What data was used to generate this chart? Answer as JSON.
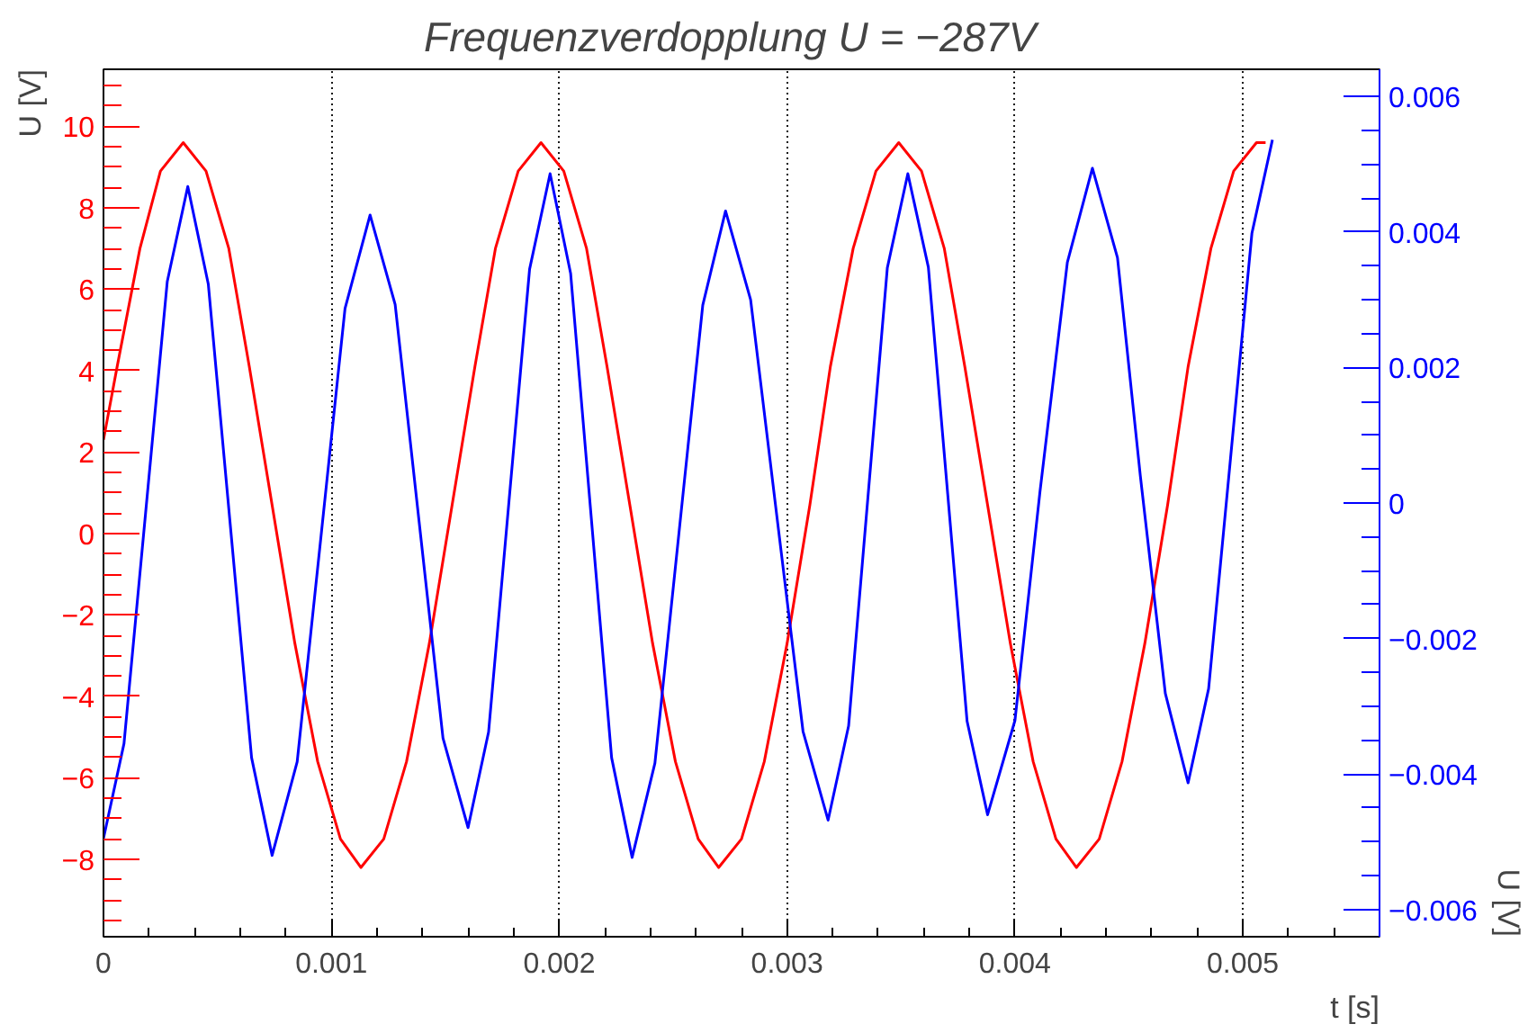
{
  "chart_data": {
    "type": "line",
    "title": "Frequenzverdopplung   U = −287V",
    "xlabel": "t [s]",
    "ylabel": "U [V]",
    "y2label": "U [V]",
    "xlim": [
      0,
      0.0056
    ],
    "xticks": [
      0,
      0.001,
      0.002,
      0.003,
      0.004,
      0.005
    ],
    "ylim": [
      -9.9,
      11.4
    ],
    "yticks": [
      {
        "value": -8,
        "label": "−8"
      },
      {
        "value": -6,
        "label": "−6"
      },
      {
        "value": -4,
        "label": "−4"
      },
      {
        "value": -2,
        "label": "−2"
      },
      0,
      2,
      4,
      6,
      8,
      10
    ],
    "y2lim": [
      -0.0064,
      0.0064
    ],
    "y2ticks": [
      {
        "value": -0.006,
        "label": "−0.006"
      },
      {
        "value": -0.004,
        "label": "−0.004"
      },
      {
        "value": -0.002,
        "label": "−0.002"
      },
      0,
      0.002,
      0.004,
      0.006
    ],
    "grid": "x",
    "series": [
      {
        "color": "#ff0000",
        "x": [
          0,
          6e-05,
          0.00016,
          0.00025,
          0.00035,
          0.00045,
          0.00055,
          0.00064,
          0.00074,
          0.00084,
          0.00094,
          0.00104,
          0.00113,
          0.00123,
          0.00133,
          0.00143,
          0.00153,
          0.00163,
          0.00172,
          0.00182,
          0.00192,
          0.00202,
          0.00212,
          0.00221,
          0.00231,
          0.00241,
          0.00251,
          0.00261,
          0.0027,
          0.0028,
          0.0029,
          0.003,
          0.0031,
          0.00319,
          0.00329,
          0.00339,
          0.00349,
          0.00359,
          0.00369,
          0.00378,
          0.00388,
          0.00398,
          0.00408,
          0.00418,
          0.00427,
          0.00437,
          0.00447,
          0.00457,
          0.00467,
          0.00476,
          0.00486,
          0.00496,
          0.00506,
          0.0051
        ],
        "values": [
          2.3,
          4.1,
          7.0,
          8.9,
          9.6,
          8.9,
          7.0,
          4.1,
          0.7,
          -2.7,
          -5.6,
          -7.5,
          -8.2,
          -7.5,
          -5.6,
          -2.7,
          0.7,
          4.1,
          7.0,
          8.9,
          9.6,
          8.9,
          7.0,
          4.1,
          0.7,
          -2.7,
          -5.6,
          -7.5,
          -8.2,
          -7.5,
          -5.6,
          -2.7,
          0.7,
          4.1,
          7.0,
          8.9,
          9.6,
          8.9,
          7.0,
          4.1,
          0.7,
          -2.7,
          -5.6,
          -7.5,
          -8.2,
          -7.5,
          -5.6,
          -2.7,
          0.7,
          4.1,
          7.0,
          8.9,
          9.6,
          9.6
        ]
      },
      {
        "color": "#0000ff",
        "axis": "y2",
        "x": [
          0,
          9e-05,
          0.000185,
          0.00028,
          0.00037,
          0.00046,
          0.000555,
          0.00065,
          0.00074,
          0.00085,
          0.000955,
          0.00106,
          0.00117,
          0.00128,
          0.001385,
          0.00149,
          0.0016,
          0.00169,
          0.00178,
          0.00187,
          0.00196,
          0.00205,
          0.00214,
          0.00223,
          0.00232,
          0.00242,
          0.002525,
          0.00263,
          0.00273,
          0.00284,
          0.002955,
          0.00307,
          0.00318,
          0.00327,
          0.003355,
          0.00344,
          0.00353,
          0.00362,
          0.003705,
          0.00379,
          0.00388,
          0.004,
          0.00411,
          0.00423,
          0.00434,
          0.00445,
          0.00455,
          0.00466,
          0.00476,
          0.00485,
          0.004945,
          0.00504,
          0.00513
        ],
        "values": [
          -0.00495,
          -0.00355,
          -0.00014,
          0.00327,
          0.00467,
          0.00323,
          -0.00027,
          -0.00376,
          -0.0052,
          -0.00382,
          -0.00048,
          0.00287,
          0.00425,
          0.00293,
          -0.00027,
          -0.00347,
          -0.00479,
          -0.00338,
          4e-05,
          0.00345,
          0.00486,
          0.00339,
          -0.00019,
          -0.00376,
          -0.00523,
          -0.00384,
          -0.00046,
          0.00292,
          0.00431,
          0.003,
          -0.00019,
          -0.00337,
          -0.00468,
          -0.00329,
          9e-05,
          0.00347,
          0.00486,
          0.00348,
          0.00013,
          -0.00322,
          -0.0046,
          -0.00321,
          0.00017,
          0.00355,
          0.00494,
          0.00362,
          0.00041,
          -0.00281,
          -0.00413,
          -0.00274,
          0.00062,
          0.00398,
          0.00536
        ]
      }
    ]
  }
}
